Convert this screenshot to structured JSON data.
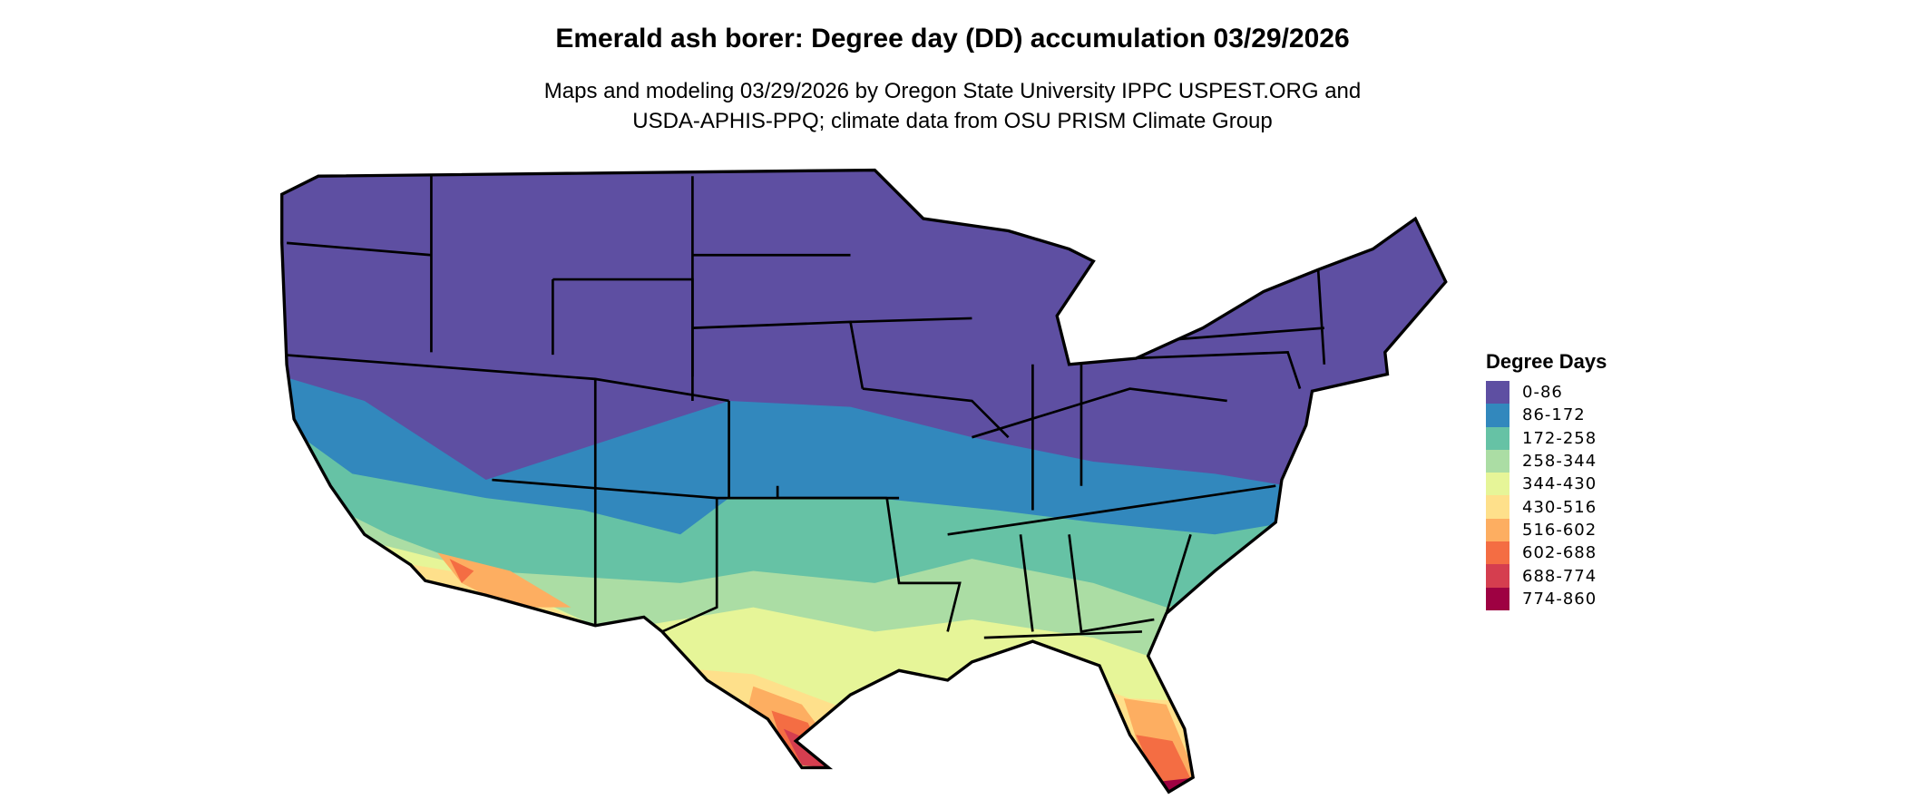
{
  "title": "Emerald ash borer: Degree day (DD) accumulation 03/29/2026",
  "subtitle_line1": "Maps and modeling 03/29/2026 by Oregon State University IPPC USPEST.ORG and",
  "subtitle_line2": "USDA-APHIS-PPQ; climate data from OSU PRISM Climate Group",
  "legend": {
    "title": "Degree Days",
    "items": [
      {
        "label": "0-86",
        "color": "#5E4FA2"
      },
      {
        "label": "86-172",
        "color": "#3288BD"
      },
      {
        "label": "172-258",
        "color": "#66C2A5"
      },
      {
        "label": "258-344",
        "color": "#ABDDA4"
      },
      {
        "label": "344-430",
        "color": "#E6F598"
      },
      {
        "label": "430-516",
        "color": "#FEE08B"
      },
      {
        "label": "516-602",
        "color": "#FDAE61"
      },
      {
        "label": "602-688",
        "color": "#F46D43"
      },
      {
        "label": "688-774",
        "color": "#D53E4F"
      },
      {
        "label": "774-860",
        "color": "#9E0142"
      }
    ]
  },
  "map": {
    "region": "Contiguous United States",
    "border_color": "#000000"
  }
}
